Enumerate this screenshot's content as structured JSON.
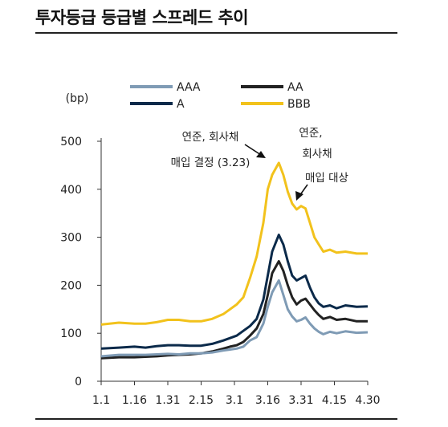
{
  "title": "투자등급 등급별 스프레드 추이",
  "chart_data": {
    "type": "line",
    "ylabel": "(bp)",
    "ylim": [
      0,
      500
    ],
    "yticks": [
      0,
      100,
      200,
      300,
      400,
      500
    ],
    "xticks": [
      "1.1",
      "1.16",
      "1.31",
      "2.15",
      "3.1",
      "3.16",
      "3.31",
      "4.15",
      "4.30"
    ],
    "xlim": [
      0,
      120
    ],
    "colors": {
      "AAA": "#7f9bb5",
      "AA": "#222222",
      "A": "#0b2a4a",
      "BBB": "#f2c21c"
    },
    "legend_order": [
      "AAA",
      "AA",
      "A",
      "BBB"
    ],
    "series": [
      {
        "name": "AAA",
        "color": "#7f9bb5",
        "x": [
          0,
          8,
          15,
          20,
          25,
          30,
          35,
          40,
          45,
          50,
          55,
          58,
          61,
          64,
          67,
          70,
          73,
          75,
          77,
          80,
          82,
          84,
          86,
          88,
          90,
          92,
          94,
          96,
          98,
          100,
          103,
          106,
          110,
          115,
          120
        ],
        "y": [
          52,
          55,
          55,
          55,
          56,
          57,
          56,
          58,
          58,
          60,
          64,
          66,
          68,
          72,
          85,
          92,
          120,
          155,
          185,
          210,
          180,
          150,
          135,
          125,
          128,
          133,
          120,
          110,
          103,
          98,
          103,
          100,
          104,
          101,
          102
        ]
      },
      {
        "name": "AA",
        "color": "#222222",
        "x": [
          0,
          8,
          15,
          20,
          25,
          30,
          35,
          40,
          45,
          50,
          55,
          58,
          61,
          64,
          67,
          70,
          73,
          75,
          77,
          80,
          82,
          84,
          86,
          88,
          90,
          92,
          94,
          96,
          98,
          100,
          103,
          106,
          110,
          115,
          120
        ],
        "y": [
          48,
          50,
          50,
          51,
          52,
          54,
          55,
          56,
          58,
          62,
          68,
          72,
          75,
          82,
          95,
          110,
          140,
          180,
          225,
          250,
          230,
          200,
          175,
          160,
          168,
          172,
          160,
          148,
          138,
          130,
          134,
          128,
          130,
          125,
          125
        ]
      },
      {
        "name": "A",
        "color": "#0b2a4a",
        "x": [
          0,
          8,
          15,
          20,
          25,
          30,
          35,
          40,
          45,
          50,
          55,
          58,
          61,
          64,
          67,
          70,
          73,
          75,
          77,
          80,
          82,
          84,
          86,
          88,
          90,
          92,
          94,
          96,
          98,
          100,
          103,
          106,
          110,
          115,
          120
        ],
        "y": [
          68,
          70,
          72,
          70,
          73,
          75,
          75,
          74,
          74,
          78,
          85,
          90,
          95,
          105,
          115,
          130,
          170,
          220,
          270,
          305,
          285,
          250,
          220,
          210,
          215,
          220,
          195,
          175,
          162,
          155,
          158,
          152,
          158,
          155,
          156
        ]
      },
      {
        "name": "BBB",
        "color": "#f2c21c",
        "x": [
          0,
          8,
          15,
          20,
          25,
          30,
          35,
          40,
          45,
          50,
          55,
          58,
          61,
          64,
          67,
          70,
          73,
          75,
          77,
          80,
          82,
          84,
          86,
          88,
          90,
          92,
          94,
          96,
          98,
          100,
          103,
          106,
          110,
          115,
          120
        ],
        "y": [
          118,
          122,
          120,
          120,
          123,
          128,
          128,
          125,
          125,
          130,
          140,
          150,
          160,
          175,
          215,
          260,
          330,
          400,
          430,
          455,
          430,
          395,
          370,
          358,
          365,
          360,
          330,
          300,
          285,
          270,
          274,
          268,
          270,
          266,
          266
        ]
      }
    ],
    "annotations": [
      {
        "lines": [
          "연준, 회사채",
          "매입 결정 (3.23)"
        ],
        "x": 73,
        "y": 420
      },
      {
        "lines": [
          "연준,",
          "회사채",
          "매입 대상"
        ],
        "x": 90,
        "y": 372
      }
    ]
  }
}
